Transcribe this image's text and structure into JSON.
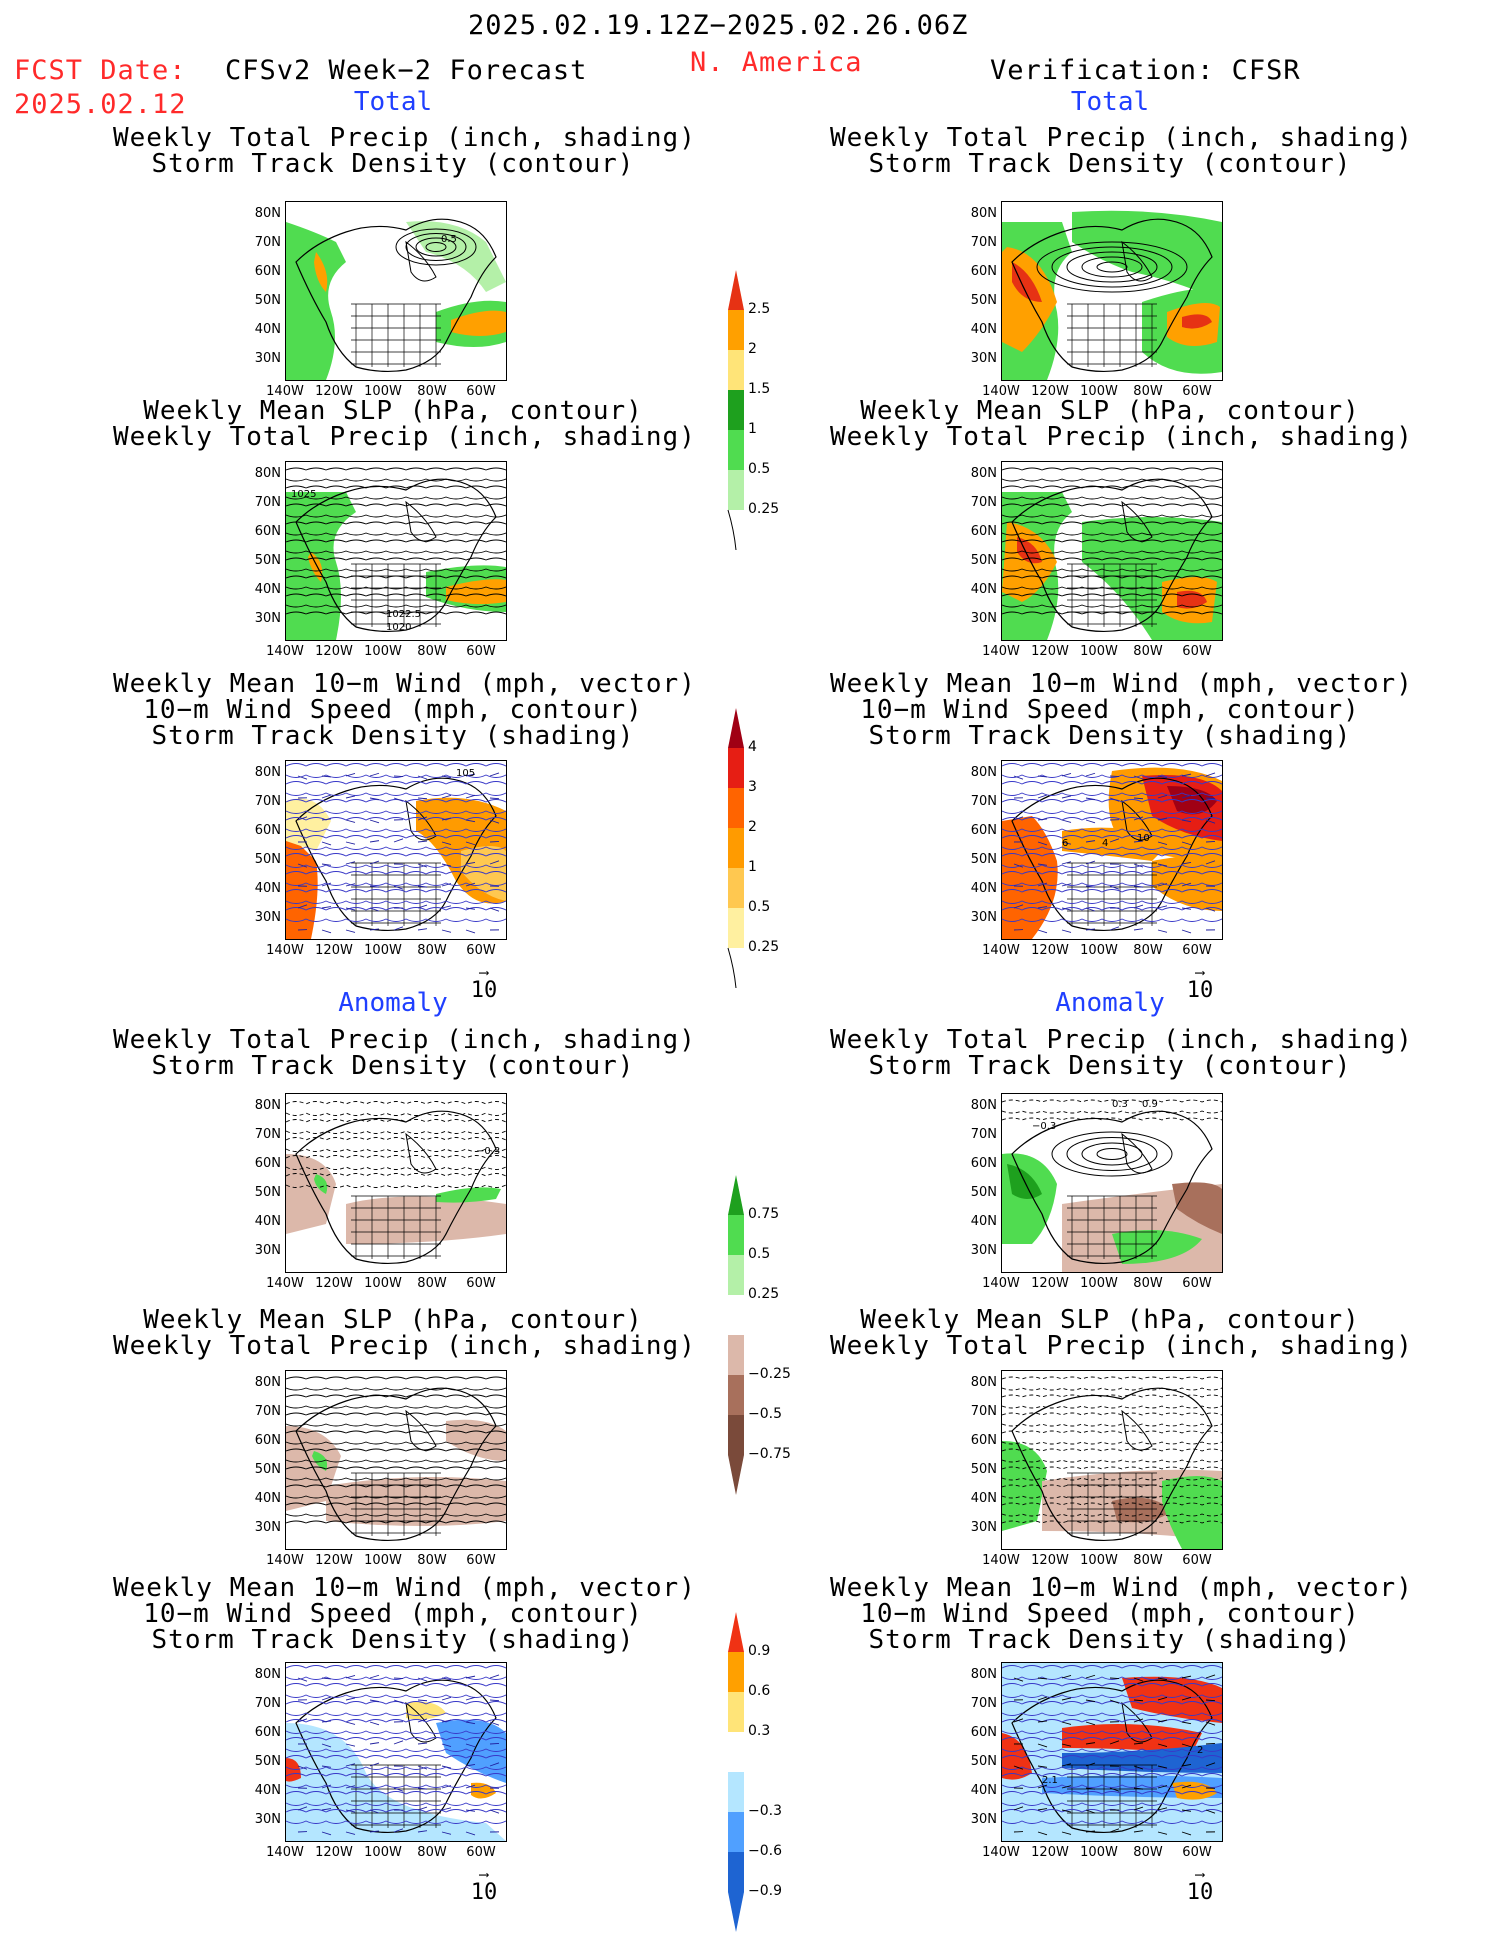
{
  "header": {
    "period": "2025.02.19.12Z−2025.02.26.06Z",
    "fcst_label": "FCST Date:",
    "fcst_date": "2025.02.12",
    "left_title": "CFSv2 Week−2 Forecast",
    "region": "N. America",
    "right_title": "Verification: CFSR"
  },
  "sections": {
    "total": "Total",
    "anomaly": "Anomaly"
  },
  "panel_titles": {
    "precip_track": [
      "Weekly Total Precip (inch, shading)",
      "Storm Track Density (contour)"
    ],
    "slp_precip": [
      "Weekly Mean SLP (hPa, contour)",
      "Weekly Total Precip (inch, shading)"
    ],
    "wind_track": [
      "Weekly Mean 10−m Wind (mph, vector)",
      "10−m Wind Speed (mph, contour)",
      "Storm Track Density (shading)"
    ]
  },
  "axes": {
    "lat": [
      "80N",
      "70N",
      "60N",
      "50N",
      "40N",
      "30N"
    ],
    "lon": [
      "140W",
      "120W",
      "100W",
      "80W",
      "60W"
    ]
  },
  "vector_ref": "10",
  "map_labels": {
    "fc_track": "0.5",
    "fc_slp_a": "1025",
    "fc_slp_b": "1022.5",
    "fc_slp_c": "1020",
    "fc_wind": "105",
    "ob_wind_a": "6",
    "ob_wind_b": "4",
    "ob_wind_c": "10",
    "fc_anom": "−0.3",
    "ob_anom_a": "−0.3",
    "ob_anom_b": "0.3",
    "ob_anom_c": "0.9",
    "ob_wanom": "2",
    "ob_wanom_b": "2.1"
  },
  "colorbars": {
    "precip": [
      "2.5",
      "2",
      "1.5",
      "1",
      "0.5",
      "0.25"
    ],
    "track": [
      "4",
      "3",
      "2",
      "1",
      "0.5",
      "0.25"
    ],
    "precip_anom": [
      "0.75",
      "0.5",
      "0.25",
      "−0.25",
      "−0.5",
      "−0.75"
    ],
    "track_anom": [
      "0.9",
      "0.6",
      "0.3",
      "−0.3",
      "−0.6",
      "−0.9"
    ]
  },
  "colors": {
    "title_red": "#ff2a2a",
    "section_blue": "#1f3fff",
    "precip_scale": [
      "#b4f0a8",
      "#50dc50",
      "#1ea01e",
      "#ffe478",
      "#ffa000",
      "#e63214"
    ],
    "track_scale": [
      "#fff0a0",
      "#ffc850",
      "#ff9b00",
      "#ff6400",
      "#e61e14",
      "#a00014"
    ],
    "anom_precip_scale": [
      "#7a4a3a",
      "#a8705c",
      "#dcb8aa",
      "#ffffff",
      "#b4f0a8",
      "#50dc50",
      "#1ea01e"
    ],
    "anom_track_scale": [
      "#1e64d2",
      "#50a0ff",
      "#b4e6ff",
      "#ffffff",
      "#ffe478",
      "#ffa000",
      "#f03214"
    ]
  }
}
